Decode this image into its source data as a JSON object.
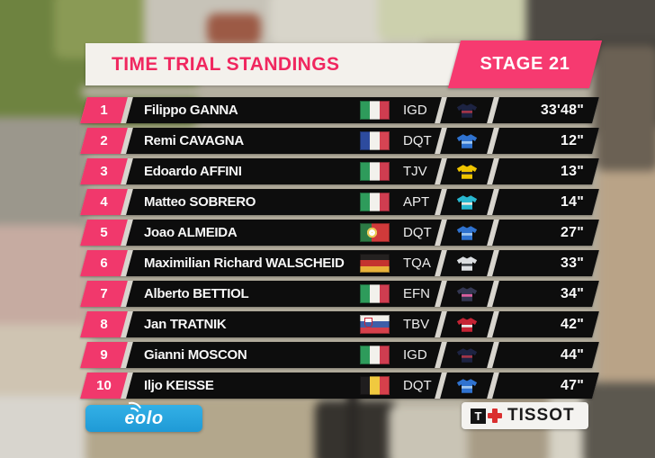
{
  "header": {
    "title": "TIME TRIAL STANDINGS",
    "stage_label": "STAGE 21"
  },
  "table": {
    "rows": [
      {
        "rank": "1",
        "name": "Filippo GANNA",
        "country": "Italy",
        "country_code": "it",
        "team": "IGD",
        "jersey": "ineos-grenadiers-jersey",
        "time": "33'48\""
      },
      {
        "rank": "2",
        "name": "Remi CAVAGNA",
        "country": "France",
        "country_code": "fr",
        "team": "DQT",
        "jersey": "deceuninck-quickstep-jersey",
        "time": "12\""
      },
      {
        "rank": "3",
        "name": "Edoardo AFFINI",
        "country": "Italy",
        "country_code": "it",
        "team": "TJV",
        "jersey": "jumbo-visma-jersey",
        "time": "13\""
      },
      {
        "rank": "4",
        "name": "Matteo SOBRERO",
        "country": "Italy",
        "country_code": "it",
        "team": "APT",
        "jersey": "astana-premier-tech-jersey",
        "time": "14\""
      },
      {
        "rank": "5",
        "name": "Joao ALMEIDA",
        "country": "Portugal",
        "country_code": "pt",
        "team": "DQT",
        "jersey": "deceuninck-quickstep-jersey",
        "time": "27\""
      },
      {
        "rank": "6",
        "name": "Maximilian Richard WALSCHEID",
        "country": "Germany",
        "country_code": "de",
        "team": "TQA",
        "jersey": "qhubeka-assos-jersey",
        "time": "33\""
      },
      {
        "rank": "7",
        "name": "Alberto BETTIOL",
        "country": "Italy",
        "country_code": "it",
        "team": "EFN",
        "jersey": "ef-nippo-jersey",
        "time": "34\""
      },
      {
        "rank": "8",
        "name": "Jan TRATNIK",
        "country": "Slovenia",
        "country_code": "si",
        "team": "TBV",
        "jersey": "bahrain-victorious-jersey",
        "time": "42\""
      },
      {
        "rank": "9",
        "name": "Gianni MOSCON",
        "country": "Italy",
        "country_code": "it",
        "team": "IGD",
        "jersey": "ineos-grenadiers-jersey",
        "time": "44\""
      },
      {
        "rank": "10",
        "name": "Iljo KEISSE",
        "country": "Belgium",
        "country_code": "be",
        "team": "DQT",
        "jersey": "deceuninck-quickstep-jersey",
        "time": "47\""
      }
    ]
  },
  "sponsors": {
    "left_logo": "eolo",
    "right_logo": "TISSOT",
    "right_logo_monogram": "T"
  },
  "colors": {
    "rank_pink": "#f1386c",
    "stage_pink": "#f63a70",
    "title_pink": "#f0275f",
    "row_black": "#0d0d0d",
    "eolo_blue": "#29a7e0",
    "tissot_red": "#da2f2f",
    "jerseys": {
      "ineos-grenadiers-jersey": {
        "base": "#1d2342",
        "accent": "#a03548"
      },
      "deceuninck-quickstep-jersey": {
        "base": "#2f72cf",
        "accent": "#9fc6ef"
      },
      "jumbo-visma-jersey": {
        "base": "#efc400",
        "accent": "#2a2a2a"
      },
      "astana-premier-tech-jersey": {
        "base": "#28b7cf",
        "accent": "#e8e6df"
      },
      "qhubeka-assos-jersey": {
        "base": "#dcdfe2",
        "accent": "#44484d"
      },
      "ef-nippo-jersey": {
        "base": "#343752",
        "accent": "#d95f9e"
      },
      "bahrain-victorious-jersey": {
        "base": "#c52334",
        "accent": "#e9e9e9"
      }
    }
  }
}
